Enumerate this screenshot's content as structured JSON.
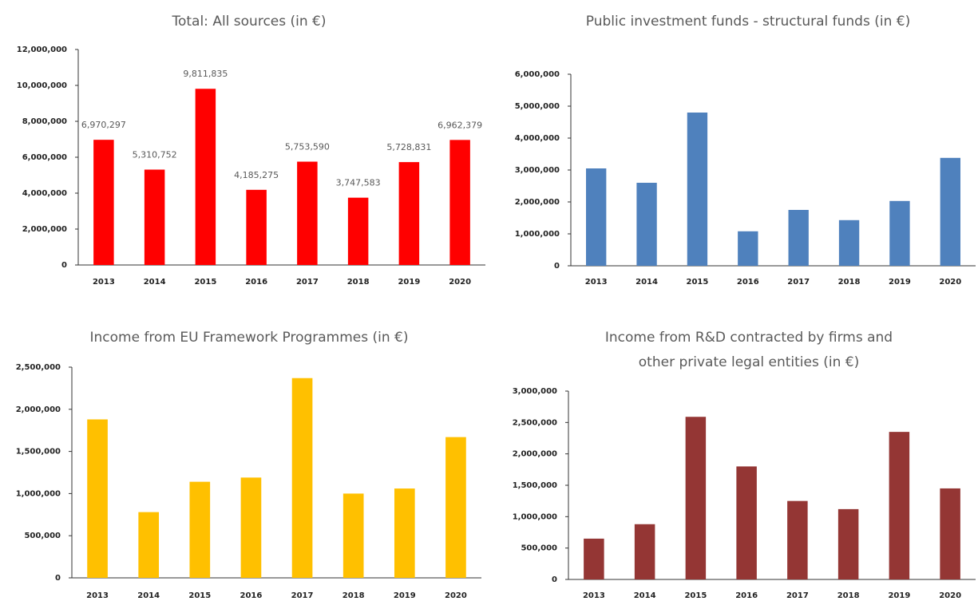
{
  "chart_data": [
    {
      "type": "bar",
      "title": [
        "Total: All sources (in €)"
      ],
      "color": "#ff0000",
      "categories": [
        "2013",
        "2014",
        "2015",
        "2016",
        "2017",
        "2018",
        "2019",
        "2020"
      ],
      "values": [
        6970297,
        5310752,
        9811835,
        4185275,
        5753590,
        3747583,
        5728831,
        6962379
      ],
      "value_labels": [
        "6,970,297",
        "5,310,752",
        "9,811,835",
        "4,185,275",
        "5,753,590",
        "3,747,583",
        "5,728,831",
        "6,962,379"
      ],
      "ylim": [
        0,
        12000000
      ],
      "yticks": [
        0,
        {
          "value": 2000000,
          "label": "2,000,000"
        },
        {
          "value": 4000000,
          "label": "4,000,000"
        },
        {
          "value": 6000000,
          "label": "6,000,000"
        },
        {
          "value": 8000000,
          "label": "8,000,000"
        },
        {
          "value": 10000000,
          "label": "10,000,000"
        },
        {
          "value": 12000000,
          "label": "12,000,000"
        }
      ]
    },
    {
      "type": "bar",
      "title": [
        "Public investment funds  - structural funds (in €)"
      ],
      "color": "#4f81bd",
      "categories": [
        "2013",
        "2014",
        "2015",
        "2016",
        "2017",
        "2018",
        "2019",
        "2020"
      ],
      "values": [
        3050000,
        2600000,
        4800000,
        1080000,
        1750000,
        1430000,
        2030000,
        3380000
      ],
      "ylim": [
        0,
        6000000
      ],
      "yticks": [
        0,
        {
          "value": 1000000,
          "label": "1,000,000"
        },
        {
          "value": 2000000,
          "label": "2,000,000"
        },
        {
          "value": 3000000,
          "label": "3,000,000"
        },
        {
          "value": 4000000,
          "label": "4,000,000"
        },
        {
          "value": 5000000,
          "label": "5,000,000"
        },
        {
          "value": 6000000,
          "label": "6,000,000"
        }
      ]
    },
    {
      "type": "bar",
      "title": [
        "Income from EU Framework Programmes  (in €)"
      ],
      "color": "#ffc000",
      "categories": [
        "2013",
        "2014",
        "2015",
        "2016",
        "2017",
        "2018",
        "2019",
        "2020"
      ],
      "values": [
        1880000,
        780000,
        1140000,
        1190000,
        2370000,
        1000000,
        1060000,
        1670000
      ],
      "ylim": [
        0,
        2500000
      ],
      "yticks": [
        0,
        {
          "value": 500000,
          "label": "500,000"
        },
        {
          "value": 1000000,
          "label": "1,000,000"
        },
        {
          "value": 1500000,
          "label": "1,500,000"
        },
        {
          "value": 2000000,
          "label": "2,000,000"
        },
        {
          "value": 2500000,
          "label": "2,500,000"
        }
      ]
    },
    {
      "type": "bar",
      "title": [
        "Income  from R&D contracted by firms and",
        "other private legal entities (in €)"
      ],
      "color": "#943634",
      "categories": [
        "2013",
        "2014",
        "2015",
        "2016",
        "2017",
        "2018",
        "2019",
        "2020"
      ],
      "values": [
        650000,
        880000,
        2590000,
        1800000,
        1250000,
        1120000,
        2350000,
        1450000
      ],
      "ylim": [
        0,
        3000000
      ],
      "yticks": [
        0,
        {
          "value": 500000,
          "label": "500,000"
        },
        {
          "value": 1000000,
          "label": "1,000,000"
        },
        {
          "value": 1500000,
          "label": "1,500,000"
        },
        {
          "value": 2000000,
          "label": "2,000,000"
        },
        {
          "value": 2500000,
          "label": "2,500,000"
        },
        {
          "value": 3000000,
          "label": "3,000,000"
        }
      ]
    }
  ]
}
